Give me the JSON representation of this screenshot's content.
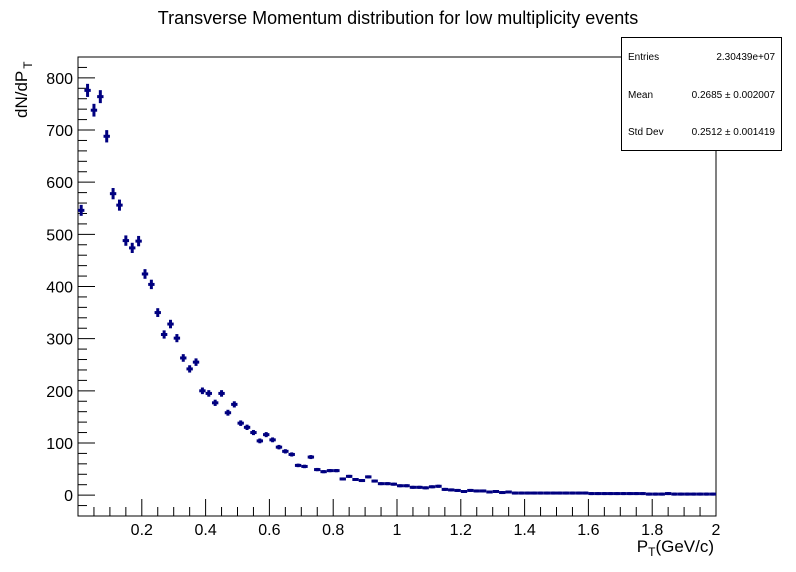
{
  "chart_data": {
    "type": "scatter",
    "title": "Transverse Momentum distribution for low multiplicity events",
    "xlabel_main": "P",
    "xlabel_sub": "T",
    "xlabel_rest": "(GeV/c)",
    "ylabel_main": "dN/dP",
    "ylabel_sub": "T",
    "xlim": [
      0,
      2
    ],
    "ylim": [
      -40,
      840
    ],
    "x_ticks": [
      "0.2",
      "0.4",
      "0.6",
      "0.8",
      "1",
      "1.2",
      "1.4",
      "1.6",
      "1.8",
      "2"
    ],
    "y_ticks": [
      "0",
      "100",
      "200",
      "300",
      "400",
      "500",
      "600",
      "700",
      "800"
    ],
    "grid": false,
    "marker_color": "#000080",
    "bin_width": 0.02,
    "series": [
      {
        "values": [
          546,
          776,
          738,
          764,
          688,
          578,
          556,
          488,
          474,
          487,
          424,
          404,
          350,
          308,
          328,
          301,
          263,
          242,
          255,
          200,
          195,
          177,
          195,
          158,
          174,
          138,
          130,
          120,
          104,
          116,
          106,
          92,
          84,
          78,
          57,
          55,
          73,
          49,
          45,
          47,
          47,
          31,
          36,
          30,
          28,
          35,
          27,
          22,
          22,
          21,
          18,
          18,
          15,
          15,
          14,
          16,
          17,
          11,
          10,
          9,
          7,
          9,
          8,
          8,
          6,
          7,
          5,
          6,
          4,
          4,
          4,
          4,
          4,
          4,
          4,
          4,
          4,
          4,
          4,
          4,
          3,
          3,
          3,
          3,
          3,
          3,
          3,
          3,
          3,
          2,
          2,
          2,
          3,
          2,
          2,
          2,
          2,
          2,
          2,
          2
        ]
      }
    ]
  },
  "stats": {
    "entries_label": "Entries",
    "entries_value": "2.30439e+07",
    "mean_label": "Mean",
    "mean_value": "0.2685 ± 0.002007",
    "stddev_label": "Std Dev",
    "stddev_value": "0.2512 ± 0.001419"
  }
}
